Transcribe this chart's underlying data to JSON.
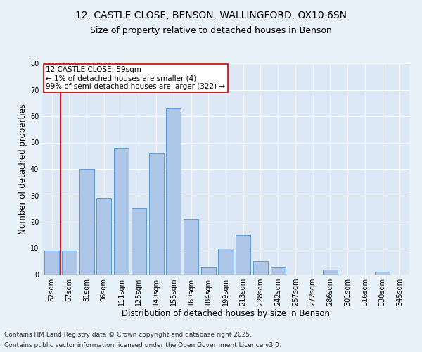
{
  "title_line1": "12, CASTLE CLOSE, BENSON, WALLINGFORD, OX10 6SN",
  "title_line2": "Size of property relative to detached houses in Benson",
  "xlabel": "Distribution of detached houses by size in Benson",
  "ylabel": "Number of detached properties",
  "categories": [
    "52sqm",
    "67sqm",
    "81sqm",
    "96sqm",
    "111sqm",
    "125sqm",
    "140sqm",
    "155sqm",
    "169sqm",
    "184sqm",
    "199sqm",
    "213sqm",
    "228sqm",
    "242sqm",
    "257sqm",
    "272sqm",
    "286sqm",
    "301sqm",
    "316sqm",
    "330sqm",
    "345sqm"
  ],
  "values": [
    9,
    9,
    40,
    29,
    48,
    25,
    46,
    63,
    21,
    3,
    10,
    15,
    5,
    3,
    0,
    0,
    2,
    0,
    0,
    1,
    0
  ],
  "bar_color": "#aec6e8",
  "bar_edge_color": "#5b9bd5",
  "highlight_color": "#cc0000",
  "annotation_text": "12 CASTLE CLOSE: 59sqm\n← 1% of detached houses are smaller (4)\n99% of semi-detached houses are larger (322) →",
  "annotation_box_color": "#ffffff",
  "annotation_box_edge": "#cc0000",
  "ylim": [
    0,
    80
  ],
  "yticks": [
    0,
    10,
    20,
    30,
    40,
    50,
    60,
    70,
    80
  ],
  "background_color": "#e8f0f8",
  "plot_bg_color": "#dce8f5",
  "footer_line1": "Contains HM Land Registry data © Crown copyright and database right 2025.",
  "footer_line2": "Contains public sector information licensed under the Open Government Licence v3.0.",
  "title_fontsize": 10,
  "subtitle_fontsize": 9,
  "axis_label_fontsize": 8.5,
  "tick_fontsize": 7,
  "annotation_fontsize": 7.5,
  "footer_fontsize": 6.5
}
